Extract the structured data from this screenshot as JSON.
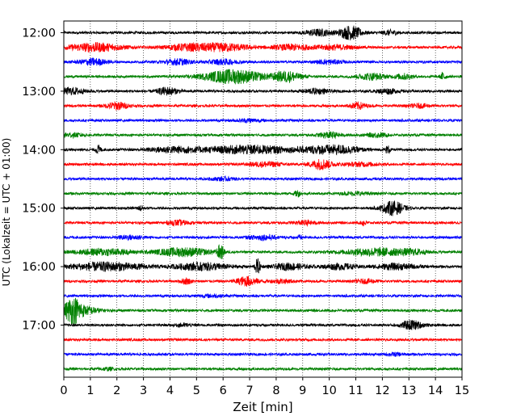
{
  "chart_data": {
    "type": "line",
    "chart_kind": "helicorder",
    "xlabel": "Zeit  [min]",
    "ylabel": "UTC (Lokalzeit = UTC + 01:00)",
    "xlim": [
      0,
      15
    ],
    "x_ticks": [
      "0",
      "1",
      "2",
      "3",
      "4",
      "5",
      "6",
      "7",
      "8",
      "9",
      "10",
      "11",
      "12",
      "13",
      "14",
      "15"
    ],
    "y_ticks": [
      "12:00",
      "13:00",
      "14:00",
      "15:00",
      "16:00",
      "17:00"
    ],
    "grid": "vertical dotted lines at each minute",
    "trace_colors": [
      "#000000",
      "#ff0000",
      "#0000ff",
      "#008000"
    ],
    "traces_per_hour": 4,
    "minutes_per_trace": 15,
    "traces": [
      {
        "start": "12:00",
        "events": [
          {
            "t": 9.6,
            "amp": 0.35,
            "w": 0.5
          },
          {
            "t": 10.8,
            "amp": 0.75,
            "w": 0.4
          },
          {
            "t": 12.3,
            "amp": 0.25,
            "w": 0.3
          }
        ]
      },
      {
        "start": "12:15",
        "events": [
          {
            "t": 1.2,
            "amp": 0.45,
            "w": 1.0
          },
          {
            "t": 4.6,
            "amp": 0.3,
            "w": 0.8
          },
          {
            "t": 6.0,
            "amp": 0.4,
            "w": 1.0
          },
          {
            "t": 8.6,
            "amp": 0.3,
            "w": 0.7
          },
          {
            "t": 10.2,
            "amp": 0.25,
            "w": 0.7
          }
        ]
      },
      {
        "start": "12:30",
        "events": [
          {
            "t": 1.1,
            "amp": 0.35,
            "w": 0.5
          },
          {
            "t": 4.3,
            "amp": 0.3,
            "w": 0.5
          },
          {
            "t": 6.0,
            "amp": 0.25,
            "w": 0.6
          },
          {
            "t": 10.0,
            "amp": 0.2,
            "w": 0.5
          }
        ]
      },
      {
        "start": "12:45",
        "events": [
          {
            "t": 6.4,
            "amp": 0.75,
            "w": 1.1
          },
          {
            "t": 8.4,
            "amp": 0.55,
            "w": 0.5
          },
          {
            "t": 11.6,
            "amp": 0.35,
            "w": 0.5
          },
          {
            "t": 12.8,
            "amp": 0.3,
            "w": 0.3
          },
          {
            "t": 14.3,
            "amp": 0.45,
            "w": 0.1
          }
        ]
      },
      {
        "start": "13:00",
        "events": [
          {
            "t": 0.3,
            "amp": 0.35,
            "w": 0.5
          },
          {
            "t": 3.9,
            "amp": 0.4,
            "w": 0.4
          },
          {
            "t": 9.5,
            "amp": 0.25,
            "w": 0.5
          },
          {
            "t": 12.2,
            "amp": 0.25,
            "w": 0.4
          }
        ]
      },
      {
        "start": "13:15",
        "events": [
          {
            "t": 2.0,
            "amp": 0.4,
            "w": 0.4
          },
          {
            "t": 11.1,
            "amp": 0.35,
            "w": 0.3
          },
          {
            "t": 13.4,
            "amp": 0.2,
            "w": 0.4
          }
        ]
      },
      {
        "start": "13:30",
        "events": [
          {
            "t": 7.0,
            "amp": 0.15,
            "w": 0.5
          }
        ]
      },
      {
        "start": "13:45",
        "events": [
          {
            "t": 0.3,
            "amp": 0.2,
            "w": 0.5
          },
          {
            "t": 10.0,
            "amp": 0.3,
            "w": 0.4
          },
          {
            "t": 11.8,
            "amp": 0.2,
            "w": 0.4
          }
        ]
      },
      {
        "start": "14:00",
        "events": [
          {
            "t": 1.3,
            "amp": 0.45,
            "w": 0.1
          },
          {
            "t": 4.2,
            "amp": 0.3,
            "w": 1.0
          },
          {
            "t": 7.0,
            "amp": 0.45,
            "w": 1.6
          },
          {
            "t": 9.6,
            "amp": 0.3,
            "w": 0.8
          },
          {
            "t": 10.5,
            "amp": 0.35,
            "w": 0.7
          },
          {
            "t": 12.2,
            "amp": 0.4,
            "w": 0.1
          }
        ]
      },
      {
        "start": "14:15",
        "events": [
          {
            "t": 7.6,
            "amp": 0.25,
            "w": 0.6
          },
          {
            "t": 9.7,
            "amp": 0.55,
            "w": 0.4
          },
          {
            "t": 11.2,
            "amp": 0.2,
            "w": 0.6
          }
        ]
      },
      {
        "start": "14:30",
        "events": [
          {
            "t": 6.0,
            "amp": 0.15,
            "w": 0.5
          }
        ]
      },
      {
        "start": "14:45",
        "events": [
          {
            "t": 8.8,
            "amp": 0.35,
            "w": 0.1
          },
          {
            "t": 11.0,
            "amp": 0.15,
            "w": 0.5
          }
        ]
      },
      {
        "start": "15:00",
        "events": [
          {
            "t": 2.9,
            "amp": 0.25,
            "w": 0.1
          },
          {
            "t": 12.4,
            "amp": 0.75,
            "w": 0.4
          }
        ]
      },
      {
        "start": "15:15",
        "events": [
          {
            "t": 4.3,
            "amp": 0.25,
            "w": 0.4
          },
          {
            "t": 9.1,
            "amp": 0.2,
            "w": 0.4
          },
          {
            "t": 11.3,
            "amp": 0.3,
            "w": 0.1
          }
        ]
      },
      {
        "start": "15:30",
        "events": [
          {
            "t": 2.5,
            "amp": 0.2,
            "w": 0.5
          },
          {
            "t": 7.5,
            "amp": 0.25,
            "w": 0.5
          },
          {
            "t": 8.9,
            "amp": 0.2,
            "w": 0.1
          }
        ]
      },
      {
        "start": "15:45",
        "events": [
          {
            "t": 1.5,
            "amp": 0.35,
            "w": 1.0
          },
          {
            "t": 4.5,
            "amp": 0.45,
            "w": 1.0
          },
          {
            "t": 5.9,
            "amp": 0.8,
            "w": 0.12
          },
          {
            "t": 11.8,
            "amp": 0.4,
            "w": 1.2
          },
          {
            "t": 13.2,
            "amp": 0.2,
            "w": 0.5
          }
        ]
      },
      {
        "start": "16:00",
        "events": [
          {
            "t": 1.6,
            "amp": 0.45,
            "w": 1.4
          },
          {
            "t": 5.2,
            "amp": 0.4,
            "w": 1.0
          },
          {
            "t": 7.3,
            "amp": 0.85,
            "w": 0.1
          },
          {
            "t": 8.5,
            "amp": 0.35,
            "w": 0.6
          },
          {
            "t": 10.4,
            "amp": 0.3,
            "w": 0.6
          },
          {
            "t": 12.5,
            "amp": 0.3,
            "w": 0.8
          }
        ]
      },
      {
        "start": "16:15",
        "events": [
          {
            "t": 4.6,
            "amp": 0.3,
            "w": 0.2
          },
          {
            "t": 6.9,
            "amp": 0.5,
            "w": 0.4
          },
          {
            "t": 8.2,
            "amp": 0.2,
            "w": 0.4
          },
          {
            "t": 11.4,
            "amp": 0.2,
            "w": 0.4
          }
        ]
      },
      {
        "start": "16:30",
        "events": [
          {
            "t": 5.5,
            "amp": 0.12,
            "w": 0.5
          }
        ]
      },
      {
        "start": "16:45",
        "events": [
          {
            "t": 0.35,
            "amp": 1.5,
            "w": 0.35
          },
          {
            "t": 1.0,
            "amp": 0.3,
            "w": 0.4
          }
        ]
      },
      {
        "start": "17:00",
        "events": [
          {
            "t": 4.5,
            "amp": 0.15,
            "w": 0.3
          },
          {
            "t": 13.1,
            "amp": 0.5,
            "w": 0.4
          }
        ]
      },
      {
        "start": "17:15",
        "events": []
      },
      {
        "start": "17:30",
        "events": [
          {
            "t": 12.5,
            "amp": 0.15,
            "w": 0.3
          }
        ]
      },
      {
        "start": "17:45",
        "events": [
          {
            "t": 1.6,
            "amp": 0.12,
            "w": 0.3
          }
        ]
      }
    ]
  }
}
